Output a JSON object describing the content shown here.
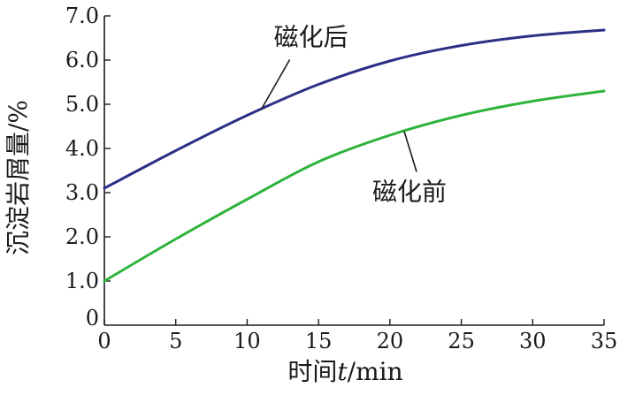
{
  "chart_data": {
    "type": "line",
    "xlabel_prefix": "时间",
    "xlabel_var": "t",
    "xlabel_unit": "/min",
    "ylabel": "沉淀岩屑量/%",
    "xlim": [
      0,
      35
    ],
    "ylim": [
      0,
      7
    ],
    "x_ticks": [
      "0",
      "5",
      "10",
      "15",
      "20",
      "25",
      "30",
      "35"
    ],
    "y_ticks": [
      "0",
      "1.0",
      "2.0",
      "3.0",
      "4.0",
      "5.0",
      "6.0",
      "7.0"
    ],
    "grid": false,
    "series": [
      {
        "name": "磁化后",
        "color": "#2b2f86",
        "x": [
          0,
          5,
          10,
          15,
          20,
          25,
          30,
          35
        ],
        "y": [
          3.1,
          3.95,
          4.75,
          5.45,
          5.98,
          6.33,
          6.55,
          6.68
        ]
      },
      {
        "name": "磁化前",
        "color": "#2eb33c",
        "x": [
          0,
          5,
          10,
          15,
          20,
          25,
          30,
          35
        ],
        "y": [
          1.0,
          1.95,
          2.85,
          3.7,
          4.3,
          4.75,
          5.07,
          5.3
        ]
      }
    ],
    "annotations": [
      {
        "text": "磁化后",
        "series": 0,
        "x": 11
      },
      {
        "text": "磁化前",
        "series": 1,
        "x": 21
      }
    ]
  }
}
